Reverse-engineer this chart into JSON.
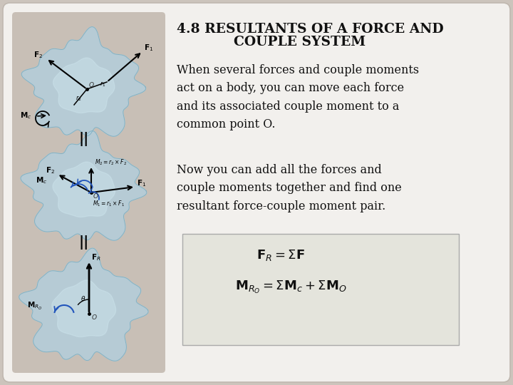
{
  "background_color": "#ccc4bc",
  "card_color": "#f2f0ed",
  "card_edge": "#c0b8b0",
  "title_line1": "4.8 RESULTANTS OF A FORCE AND",
  "title_line2": "COUPLE SYSTEM",
  "title_fontsize": 13.5,
  "title_color": "#111111",
  "paragraph1": "When several forces and couple moments\nact on a body, you can move each force\nand its associated couple moment to a\ncommon point O.",
  "paragraph2": "Now you can add all the forces and\ncouple moments together and find one\nresultant force-couple moment pair.",
  "para_fontsize": 11.5,
  "para_color": "#111111",
  "formula1": "$\\mathbf{F}_{R} = \\Sigma\\mathbf{F}$",
  "formula2": "$\\mathbf{M}_{R_O} = \\Sigma\\mathbf{M}_c + \\Sigma\\mathbf{M}_O$",
  "formula_fontsize": 13,
  "formula_box_color": "#e4e4dc",
  "formula_box_edge": "#aaaaaa",
  "left_bg": "#c8bfb6",
  "blob_color": "#b0d0e0",
  "blob_edge": "#7aaabb",
  "separator": "||",
  "sep_fontsize": 14
}
